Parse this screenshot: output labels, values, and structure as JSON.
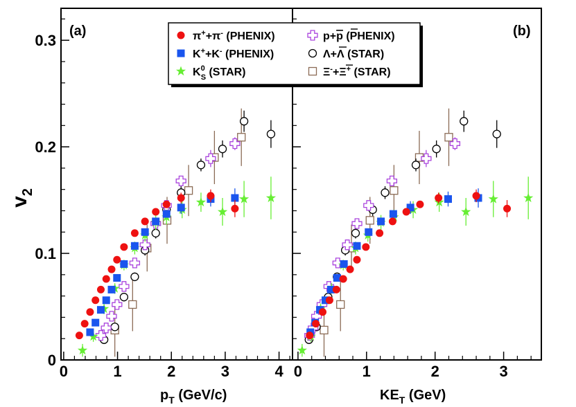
{
  "figure": {
    "y_title_main": "v",
    "y_title_sub": "2",
    "panels": [
      {
        "label": "(a)",
        "x_title_main": "p",
        "x_title_sub": "T",
        "x_title_rest": " (GeV/c)"
      },
      {
        "label": "(b)",
        "x_title_main": "KE",
        "x_title_sub": "T",
        "x_title_rest": " (GeV)"
      }
    ],
    "legend": [
      {
        "main": "π",
        "sup1": "+",
        "mid": "+π",
        "sup2": "-",
        "rest": " (PHENIX)"
      },
      {
        "main": "p+",
        "over": "p",
        "rest": " (PHENIX)"
      },
      {
        "main": "K",
        "sup1": "+",
        "mid": "+K",
        "sup2": "-",
        "rest": " (PHENIX)"
      },
      {
        "main": "Λ+",
        "over": "Λ",
        "rest": " (STAR)"
      },
      {
        "main": "K",
        "sup1": "0",
        "sub1": "S",
        "rest": " (STAR)"
      },
      {
        "main": "Ξ",
        "sup1": "-",
        "mid": "+",
        "over": "Ξ",
        "sup2": "+",
        "rest": " (STAR)"
      }
    ]
  },
  "colors": {
    "pion": "#ee1111",
    "kaon": "#1a55ee",
    "kshort": "#66ee33",
    "proton": "#aa44dd",
    "lambda": "#000000",
    "xi": "#8b6b55"
  },
  "chart_data": [
    {
      "type": "scatter",
      "title": "(a)",
      "xlabel": "pT (GeV/c)",
      "ylabel": "v2",
      "xlim": [
        -0.05,
        4.25
      ],
      "ylim": [
        0,
        0.33
      ],
      "xticks": [
        0,
        1,
        2,
        3,
        4
      ],
      "yticks": [
        0,
        0.1,
        0.2,
        0.3
      ],
      "series": [
        {
          "name": "π⁺+π⁻ (PHENIX)",
          "key": "pion",
          "marker": "circle",
          "x": [
            0.29,
            0.39,
            0.49,
            0.59,
            0.69,
            0.79,
            0.89,
            0.99,
            1.12,
            1.32,
            1.51,
            1.71,
            1.91,
            2.18,
            2.73,
            3.18
          ],
          "y": [
            0.023,
            0.034,
            0.045,
            0.056,
            0.066,
            0.076,
            0.085,
            0.094,
            0.106,
            0.119,
            0.13,
            0.139,
            0.146,
            0.152,
            0.154,
            0.142
          ],
          "yerr": [
            0,
            0,
            0,
            0,
            0,
            0,
            0,
            0,
            0,
            0,
            0,
            0,
            0,
            0.005,
            0.006,
            0.008
          ]
        },
        {
          "name": "K⁺+K⁻ (PHENIX)",
          "key": "kaon",
          "marker": "square",
          "x": [
            0.49,
            0.59,
            0.69,
            0.79,
            0.89,
            0.99,
            1.12,
            1.32,
            1.51,
            1.71,
            1.91,
            2.18,
            2.73,
            3.18
          ],
          "y": [
            0.026,
            0.035,
            0.047,
            0.056,
            0.066,
            0.077,
            0.09,
            0.107,
            0.12,
            0.13,
            0.137,
            0.143,
            0.151,
            0.152
          ],
          "yerr": [
            0,
            0,
            0,
            0,
            0,
            0,
            0,
            0,
            0,
            0,
            0,
            0.006,
            0.007,
            0.009
          ]
        },
        {
          "name": "K⁰S (STAR)",
          "key": "kshort",
          "marker": "star",
          "x": [
            0.35,
            0.55,
            0.75,
            0.95,
            1.12,
            1.32,
            1.51,
            1.71,
            1.91,
            2.2,
            2.55,
            2.95,
            3.35,
            3.85
          ],
          "y": [
            0.009,
            0.022,
            0.048,
            0.067,
            0.089,
            0.105,
            0.117,
            0.129,
            0.134,
            0.141,
            0.148,
            0.139,
            0.151,
            0.152
          ],
          "yerr": [
            0.006,
            0.005,
            0.005,
            0.005,
            0.005,
            0.006,
            0.006,
            0.007,
            0.007,
            0.008,
            0.009,
            0.013,
            0.017,
            0.02
          ]
        },
        {
          "name": "p+p̄ (PHENIX)",
          "key": "proton",
          "marker": "cross",
          "x": [
            0.69,
            0.79,
            0.89,
            0.99,
            1.12,
            1.32,
            1.51,
            1.71,
            1.91,
            2.18,
            2.73,
            3.18
          ],
          "y": [
            0.023,
            0.03,
            0.041,
            0.052,
            0.069,
            0.091,
            0.108,
            0.128,
            0.145,
            0.168,
            0.189,
            0.203
          ],
          "yerr": [
            0,
            0,
            0,
            0,
            0,
            0,
            0,
            0,
            0,
            0,
            0.008,
            0.006
          ]
        },
        {
          "name": "Λ+Λ̄ (STAR)",
          "key": "lambda",
          "marker": "opencircle",
          "x": [
            0.75,
            0.95,
            1.12,
            1.32,
            1.51,
            1.71,
            1.91,
            2.18,
            2.55,
            2.95,
            3.35,
            3.85
          ],
          "y": [
            0.019,
            0.031,
            0.059,
            0.078,
            0.103,
            0.119,
            0.141,
            0.157,
            0.183,
            0.198,
            0.224,
            0.212
          ],
          "yerr": [
            0.004,
            0.004,
            0.004,
            0.004,
            0.005,
            0.005,
            0.006,
            0.006,
            0.006,
            0.008,
            0.01,
            0.013
          ]
        },
        {
          "name": "Ξ⁻+Ξ̄⁺ (STAR)",
          "key": "xi",
          "marker": "opensquare",
          "x": [
            0.95,
            1.28,
            1.55,
            1.92,
            2.32,
            2.8,
            3.3
          ],
          "y": [
            0.028,
            0.052,
            0.105,
            0.131,
            0.159,
            0.19,
            0.209
          ],
          "yerr": [
            0.025,
            0.025,
            0.022,
            0.022,
            0.024,
            0.025,
            0.027
          ]
        }
      ]
    },
    {
      "type": "scatter",
      "title": "(b)",
      "xlabel": "KET (GeV)",
      "ylabel": "v2",
      "xlim": [
        -0.08,
        3.55
      ],
      "ylim": [
        0,
        0.33
      ],
      "xticks": [
        0,
        1,
        2,
        3
      ],
      "yticks": [
        0,
        0.1,
        0.2,
        0.3
      ],
      "series": [
        {
          "name": "π⁺+π⁻ (PHENIX)",
          "key": "pion",
          "marker": "circle",
          "x": [
            0.17,
            0.26,
            0.36,
            0.46,
            0.56,
            0.66,
            0.76,
            0.86,
            0.99,
            1.19,
            1.38,
            1.58,
            1.78,
            2.05,
            2.6,
            3.05
          ],
          "y": [
            0.023,
            0.034,
            0.045,
            0.056,
            0.066,
            0.076,
            0.085,
            0.094,
            0.106,
            0.119,
            0.13,
            0.139,
            0.146,
            0.152,
            0.154,
            0.142
          ],
          "yerr": [
            0,
            0,
            0,
            0,
            0,
            0,
            0,
            0,
            0,
            0,
            0,
            0,
            0,
            0.005,
            0.006,
            0.008
          ]
        },
        {
          "name": "K⁺+K⁻ (PHENIX)",
          "key": "kaon",
          "marker": "square",
          "x": [
            0.18,
            0.25,
            0.32,
            0.4,
            0.48,
            0.57,
            0.67,
            0.86,
            1.03,
            1.21,
            1.39,
            1.64,
            2.19,
            2.63
          ],
          "y": [
            0.026,
            0.035,
            0.047,
            0.056,
            0.066,
            0.077,
            0.09,
            0.107,
            0.12,
            0.13,
            0.137,
            0.143,
            0.151,
            0.152
          ],
          "yerr": [
            0,
            0,
            0,
            0,
            0,
            0,
            0,
            0,
            0,
            0,
            0,
            0.006,
            0.007,
            0.009
          ]
        },
        {
          "name": "K⁰S (STAR)",
          "key": "kshort",
          "marker": "star",
          "x": [
            0.06,
            0.19,
            0.33,
            0.49,
            0.66,
            0.84,
            1.02,
            1.21,
            1.4,
            1.68,
            2.06,
            2.45,
            2.85,
            3.36
          ],
          "y": [
            0.009,
            0.022,
            0.048,
            0.067,
            0.089,
            0.105,
            0.117,
            0.129,
            0.134,
            0.141,
            0.148,
            0.139,
            0.151,
            0.152
          ],
          "yerr": [
            0.006,
            0.005,
            0.005,
            0.005,
            0.005,
            0.006,
            0.006,
            0.007,
            0.007,
            0.008,
            0.009,
            0.013,
            0.017,
            0.02
          ]
        },
        {
          "name": "p+p̄ (PHENIX)",
          "key": "proton",
          "marker": "cross",
          "x": [
            0.17,
            0.22,
            0.27,
            0.35,
            0.45,
            0.58,
            0.72,
            0.86,
            1.03,
            1.37,
            1.87,
            2.29
          ],
          "y": [
            0.023,
            0.03,
            0.041,
            0.052,
            0.069,
            0.091,
            0.108,
            0.128,
            0.145,
            0.168,
            0.189,
            0.203
          ],
          "yerr": [
            0,
            0,
            0,
            0,
            0,
            0,
            0,
            0,
            0,
            0,
            0.008,
            0.006
          ]
        },
        {
          "name": "Λ+Λ̄ (STAR)",
          "key": "lambda",
          "marker": "opencircle",
          "x": [
            0.16,
            0.27,
            0.44,
            0.57,
            0.69,
            0.84,
            1.09,
            1.27,
            1.72,
            2.02,
            2.42,
            2.9
          ],
          "y": [
            0.019,
            0.031,
            0.059,
            0.078,
            0.103,
            0.119,
            0.141,
            0.157,
            0.183,
            0.198,
            0.224,
            0.212
          ],
          "yerr": [
            0.004,
            0.004,
            0.004,
            0.004,
            0.005,
            0.005,
            0.006,
            0.006,
            0.006,
            0.008,
            0.01,
            0.013
          ]
        },
        {
          "name": "Ξ⁻+Ξ̄⁺ (STAR)",
          "key": "xi",
          "marker": "opensquare",
          "x": [
            0.38,
            0.62,
            0.78,
            1.05,
            1.4,
            1.77,
            2.2
          ],
          "y": [
            0.028,
            0.052,
            0.105,
            0.131,
            0.159,
            0.19,
            0.209
          ],
          "yerr": [
            0.025,
            0.025,
            0.022,
            0.022,
            0.024,
            0.025,
            0.027
          ]
        }
      ]
    }
  ]
}
